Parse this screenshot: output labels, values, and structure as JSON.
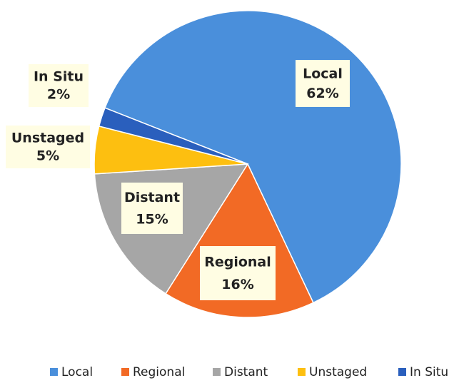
{
  "chart_data": {
    "type": "pie",
    "categories": [
      "Local",
      "Regional",
      "Distant",
      "Unstaged",
      "In Situ"
    ],
    "values": [
      62,
      16,
      15,
      5,
      2
    ],
    "value_labels": [
      "62%",
      "16%",
      "15%",
      "5%",
      "2%"
    ],
    "colors": [
      "#4a8fdb",
      "#f26a25",
      "#a6a6a6",
      "#fdbf10",
      "#2a5fbd"
    ],
    "legend": "bottom"
  }
}
